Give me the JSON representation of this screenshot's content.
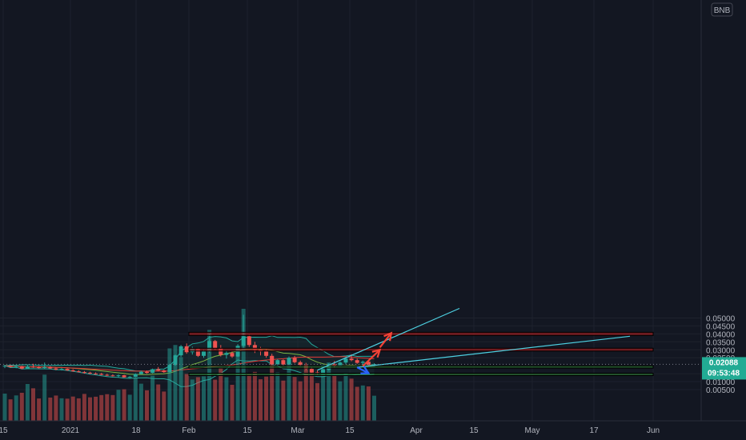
{
  "chart_data": {
    "type": "candlestick",
    "currency": "BNB",
    "ylim": [
      0.0,
      0.052
    ],
    "y_ticks": [
      "0.05000",
      "0.04500",
      "0.04000",
      "0.03500",
      "0.03000",
      "0.02500",
      "0.01500",
      "0.01000",
      "0.00500"
    ],
    "x_ticks": [
      "15",
      "2021",
      "18",
      "Feb",
      "15",
      "Mar",
      "15",
      "Apr",
      "15",
      "May",
      "17",
      "Jun"
    ],
    "last_price": {
      "value": "0.02088",
      "countdown": "09:53:48"
    },
    "candles": [
      {
        "o": 0.0195,
        "h": 0.0206,
        "l": 0.0185,
        "c": 0.02
      },
      {
        "o": 0.02,
        "h": 0.0204,
        "l": 0.0188,
        "c": 0.0192
      },
      {
        "o": 0.0192,
        "h": 0.0203,
        "l": 0.0184,
        "c": 0.0197
      },
      {
        "o": 0.0197,
        "h": 0.02,
        "l": 0.0178,
        "c": 0.0182
      },
      {
        "o": 0.0182,
        "h": 0.0208,
        "l": 0.018,
        "c": 0.0195
      },
      {
        "o": 0.0195,
        "h": 0.0212,
        "l": 0.0186,
        "c": 0.019
      },
      {
        "o": 0.019,
        "h": 0.0198,
        "l": 0.0182,
        "c": 0.0186
      },
      {
        "o": 0.0186,
        "h": 0.022,
        "l": 0.0183,
        "c": 0.0192
      },
      {
        "o": 0.0192,
        "h": 0.0197,
        "l": 0.018,
        "c": 0.0183
      },
      {
        "o": 0.0183,
        "h": 0.019,
        "l": 0.0172,
        "c": 0.0176
      },
      {
        "o": 0.0176,
        "h": 0.0185,
        "l": 0.017,
        "c": 0.018
      },
      {
        "o": 0.018,
        "h": 0.0183,
        "l": 0.0168,
        "c": 0.0171
      },
      {
        "o": 0.0171,
        "h": 0.0178,
        "l": 0.0162,
        "c": 0.0165
      },
      {
        "o": 0.0165,
        "h": 0.0172,
        "l": 0.0158,
        "c": 0.016
      },
      {
        "o": 0.016,
        "h": 0.0167,
        "l": 0.015,
        "c": 0.0156
      },
      {
        "o": 0.0156,
        "h": 0.0162,
        "l": 0.0148,
        "c": 0.0151
      },
      {
        "o": 0.0151,
        "h": 0.0158,
        "l": 0.0144,
        "c": 0.0149
      },
      {
        "o": 0.0149,
        "h": 0.0155,
        "l": 0.014,
        "c": 0.0143
      },
      {
        "o": 0.0143,
        "h": 0.015,
        "l": 0.0135,
        "c": 0.0139
      },
      {
        "o": 0.0139,
        "h": 0.0146,
        "l": 0.0132,
        "c": 0.0135
      },
      {
        "o": 0.0135,
        "h": 0.0145,
        "l": 0.0128,
        "c": 0.014
      },
      {
        "o": 0.014,
        "h": 0.0143,
        "l": 0.0125,
        "c": 0.0127
      },
      {
        "o": 0.0127,
        "h": 0.0135,
        "l": 0.0122,
        "c": 0.013
      },
      {
        "o": 0.013,
        "h": 0.0152,
        "l": 0.0128,
        "c": 0.0148
      },
      {
        "o": 0.0148,
        "h": 0.0168,
        "l": 0.0145,
        "c": 0.0162
      },
      {
        "o": 0.0162,
        "h": 0.017,
        "l": 0.015,
        "c": 0.0155
      },
      {
        "o": 0.0155,
        "h": 0.0182,
        "l": 0.0152,
        "c": 0.0178
      },
      {
        "o": 0.0178,
        "h": 0.0192,
        "l": 0.0165,
        "c": 0.017
      },
      {
        "o": 0.017,
        "h": 0.0175,
        "l": 0.0155,
        "c": 0.016
      },
      {
        "o": 0.016,
        "h": 0.021,
        "l": 0.0158,
        "c": 0.0205
      },
      {
        "o": 0.0205,
        "h": 0.027,
        "l": 0.02,
        "c": 0.0265
      },
      {
        "o": 0.0265,
        "h": 0.033,
        "l": 0.0255,
        "c": 0.0322
      },
      {
        "o": 0.0322,
        "h": 0.034,
        "l": 0.0275,
        "c": 0.0285
      },
      {
        "o": 0.0285,
        "h": 0.032,
        "l": 0.027,
        "c": 0.0305
      },
      {
        "o": 0.0305,
        "h": 0.0312,
        "l": 0.0255,
        "c": 0.0262
      },
      {
        "o": 0.0262,
        "h": 0.03,
        "l": 0.025,
        "c": 0.029
      },
      {
        "o": 0.029,
        "h": 0.04,
        "l": 0.028,
        "c": 0.0355
      },
      {
        "o": 0.0355,
        "h": 0.0362,
        "l": 0.03,
        "c": 0.031
      },
      {
        "o": 0.031,
        "h": 0.033,
        "l": 0.0258,
        "c": 0.0268
      },
      {
        "o": 0.0268,
        "h": 0.0295,
        "l": 0.0245,
        "c": 0.028
      },
      {
        "o": 0.028,
        "h": 0.0292,
        "l": 0.025,
        "c": 0.0258
      },
      {
        "o": 0.0258,
        "h": 0.0335,
        "l": 0.0255,
        "c": 0.0325
      },
      {
        "o": 0.0325,
        "h": 0.052,
        "l": 0.03,
        "c": 0.0385
      },
      {
        "o": 0.0385,
        "h": 0.0395,
        "l": 0.0318,
        "c": 0.033
      },
      {
        "o": 0.033,
        "h": 0.035,
        "l": 0.028,
        "c": 0.03
      },
      {
        "o": 0.03,
        "h": 0.0318,
        "l": 0.0265,
        "c": 0.029
      },
      {
        "o": 0.029,
        "h": 0.0305,
        "l": 0.025,
        "c": 0.0262
      },
      {
        "o": 0.0262,
        "h": 0.0275,
        "l": 0.02,
        "c": 0.021
      },
      {
        "o": 0.021,
        "h": 0.0242,
        "l": 0.0198,
        "c": 0.0235
      },
      {
        "o": 0.0235,
        "h": 0.024,
        "l": 0.02,
        "c": 0.0208
      },
      {
        "o": 0.0208,
        "h": 0.0258,
        "l": 0.0205,
        "c": 0.025
      },
      {
        "o": 0.025,
        "h": 0.0262,
        "l": 0.0215,
        "c": 0.0222
      },
      {
        "o": 0.0222,
        "h": 0.0232,
        "l": 0.0195,
        "c": 0.0205
      },
      {
        "o": 0.0205,
        "h": 0.0218,
        "l": 0.0172,
        "c": 0.018
      },
      {
        "o": 0.018,
        "h": 0.019,
        "l": 0.015,
        "c": 0.0158
      },
      {
        "o": 0.0158,
        "h": 0.017,
        "l": 0.0145,
        "c": 0.015
      },
      {
        "o": 0.015,
        "h": 0.0185,
        "l": 0.0148,
        "c": 0.0175
      },
      {
        "o": 0.0175,
        "h": 0.0215,
        "l": 0.017,
        "c": 0.0208
      },
      {
        "o": 0.0208,
        "h": 0.023,
        "l": 0.019,
        "c": 0.0198
      },
      {
        "o": 0.0198,
        "h": 0.0228,
        "l": 0.0195,
        "c": 0.022
      },
      {
        "o": 0.022,
        "h": 0.0255,
        "l": 0.021,
        "c": 0.0245
      },
      {
        "o": 0.0245,
        "h": 0.0272,
        "l": 0.0228,
        "c": 0.0235
      },
      {
        "o": 0.0235,
        "h": 0.0245,
        "l": 0.0212,
        "c": 0.0218
      },
      {
        "o": 0.0218,
        "h": 0.0232,
        "l": 0.02,
        "c": 0.0225
      },
      {
        "o": 0.0225,
        "h": 0.023,
        "l": 0.0198,
        "c": 0.0205
      },
      {
        "o": 0.0205,
        "h": 0.0215,
        "l": 0.0195,
        "c": 0.0209
      }
    ],
    "zones": [
      {
        "kind": "resistance",
        "low": 0.039,
        "high": 0.041,
        "from": 30,
        "to": 101
      },
      {
        "kind": "resistance",
        "low": 0.0292,
        "high": 0.031,
        "from": 30,
        "to": 101
      },
      {
        "kind": "support",
        "low": 0.0195,
        "high": 0.02,
        "from": 30,
        "to": 101
      },
      {
        "kind": "support",
        "low": 0.0148,
        "high": 0.0153,
        "from": 30,
        "to": 101
      }
    ],
    "trendlines": [
      {
        "x0": 55,
        "y0": 0.0172,
        "x1": 80,
        "y1": 0.056
      },
      {
        "x0": 62,
        "y0": 0.019,
        "x1": 110,
        "y1": 0.0385
      }
    ],
    "arrows": [
      {
        "kind": "up",
        "path": [
          [
            63,
            0.0198
          ],
          [
            66,
            0.03
          ]
        ]
      },
      {
        "kind": "up",
        "path": [
          [
            66,
            0.0315
          ],
          [
            68,
            0.0405
          ]
        ]
      },
      {
        "kind": "down",
        "path": [
          [
            62,
            0.019
          ],
          [
            64,
            0.0153
          ]
        ]
      }
    ]
  }
}
